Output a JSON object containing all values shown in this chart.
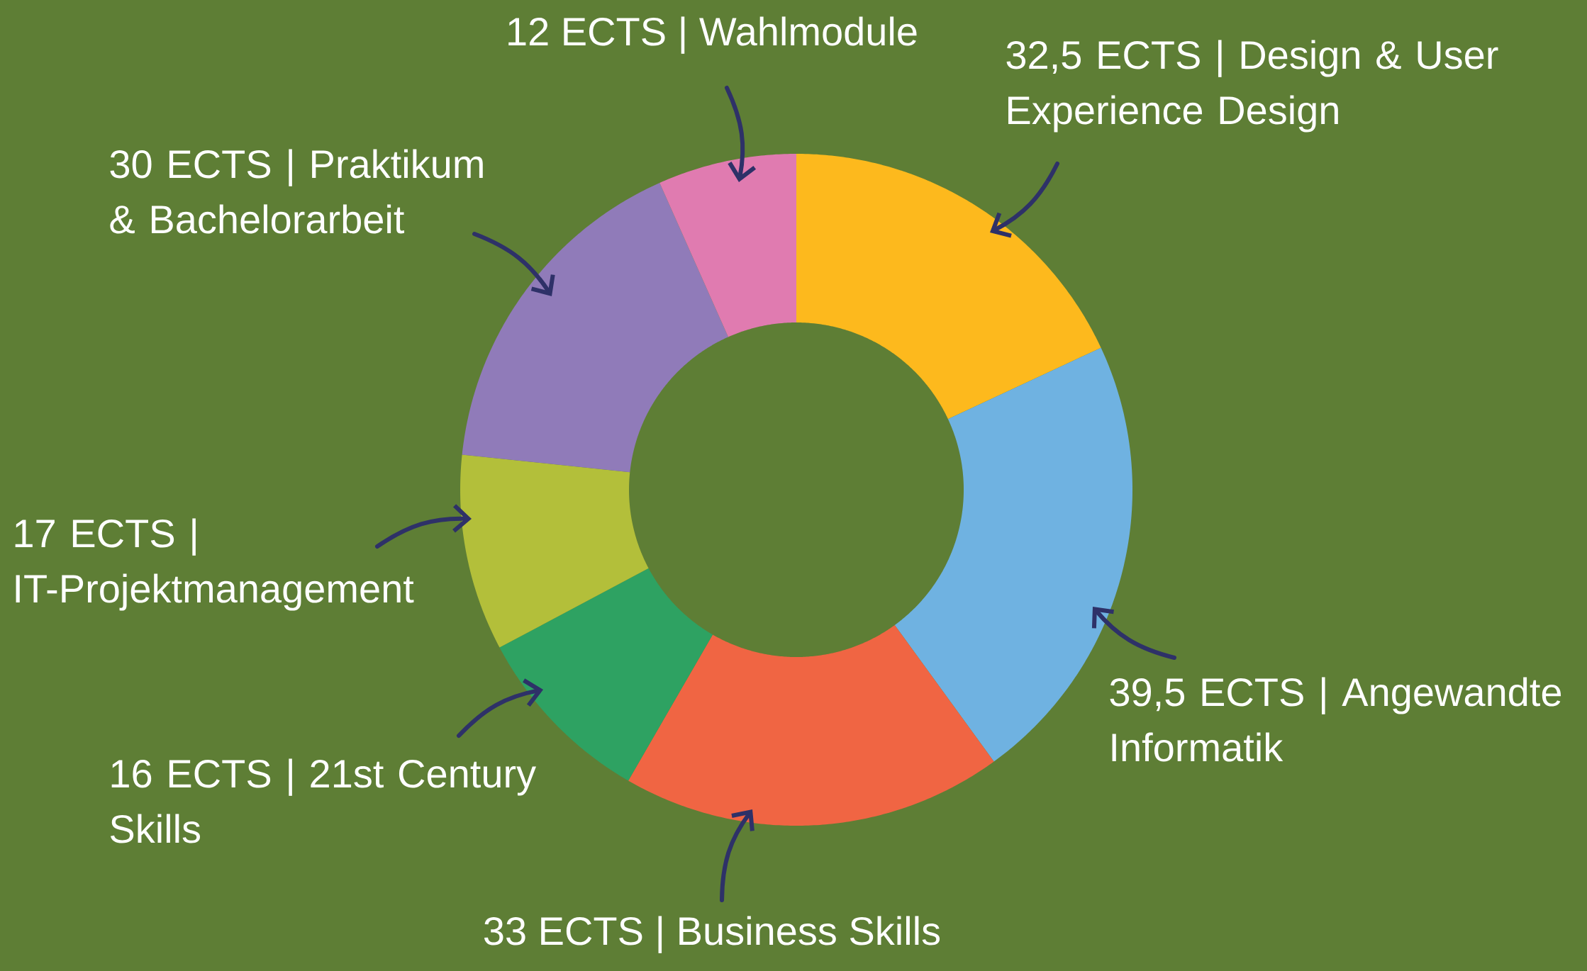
{
  "chart_data": {
    "type": "donut",
    "categories": [
      "32,5 ECTS | Design & User Experience Design",
      "39,5 ECTS | Angewandte Informatik",
      "33 ECTS | Business Skills",
      "16 ECTS | 21st Century Skills",
      "17 ECTS | IT-Projektmanagement",
      "30 ECTS | Praktikum & Bachelorarbeit",
      "12 ECTS | Wahlmodule"
    ],
    "values": [
      32.5,
      39.5,
      33,
      16,
      17,
      30,
      12
    ],
    "colors": [
      "#fdb91d",
      "#6fb2e1",
      "#f06543",
      "#2ea262",
      "#b3bf3a",
      "#907bb9",
      "#e07bb0"
    ]
  }
}
